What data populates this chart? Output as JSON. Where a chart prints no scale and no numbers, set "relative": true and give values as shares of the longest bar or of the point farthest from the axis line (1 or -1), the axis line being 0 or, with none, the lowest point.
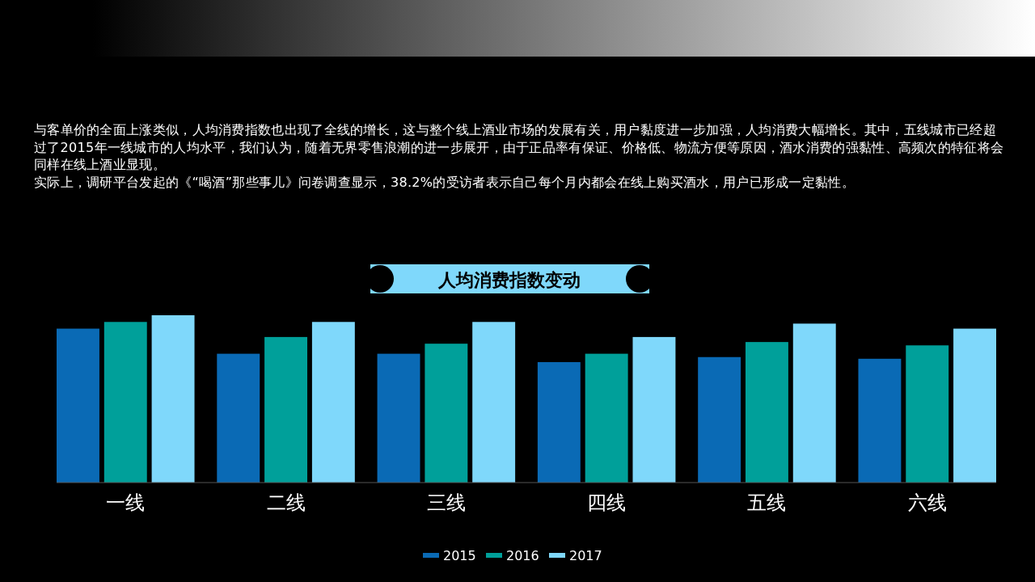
{
  "chart_data": {
    "type": "bar",
    "title": "人均消费指数变动",
    "relative": true,
    "categories": [
      "一线",
      "二线",
      "三线",
      "四线",
      "五线",
      "六线"
    ],
    "series": [
      {
        "name": "2015",
        "color": "#0a6ab5",
        "values": [
          0.92,
          0.77,
          0.77,
          0.72,
          0.75,
          0.74
        ]
      },
      {
        "name": "2016",
        "color": "#00a09a",
        "values": [
          0.96,
          0.87,
          0.83,
          0.77,
          0.84,
          0.82
        ]
      },
      {
        "name": "2017",
        "color": "#7fd8fb",
        "values": [
          1,
          0.96,
          0.96,
          0.87,
          0.95,
          0.92
        ]
      }
    ],
    "legend": "bottom",
    "annotations": [
      "与客单价的全面上涨类似，人均消费指数也出现了全线的增长，这与整个线上酒业市场的发展有关，用户黏度进一步加强，人均消费大幅增长。其中，五线城市已经超过了2015年一线城市的人均水平，我们认为，随着无界零售浪潮的进一步展开，由于正品率有保证、价格低、物流方便等原因，酒水消费的强黏性、高频次的特征将会同样在线上酒业显现。",
      "实际上，调研平台发起的《“喝酒”那些事儿》问卷调查显示，38.2%的受访者表示自己每个月内都会在线上购买酒水，用户已形成一定黏性。"
    ]
  }
}
